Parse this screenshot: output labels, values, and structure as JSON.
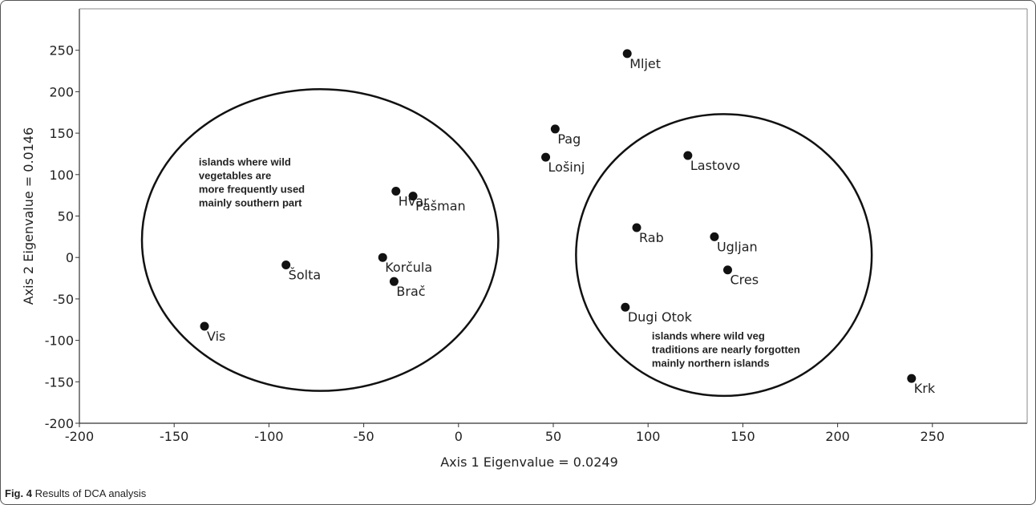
{
  "caption": {
    "label": "Fig. 4",
    "text": "Results of DCA analysis"
  },
  "chart_data": {
    "type": "scatter",
    "xlabel": "Axis 1 Eigenvalue =  0.0249",
    "ylabel": "Axis 2 Eigenvalue = 0.0146",
    "xlim": [
      -200,
      300
    ],
    "ylim": [
      -200,
      300
    ],
    "xticks": [
      -200,
      -150,
      -100,
      -50,
      0,
      50,
      100,
      150,
      200,
      250
    ],
    "yticks": [
      -200,
      -150,
      -100,
      -50,
      0,
      50,
      100,
      150,
      200,
      250
    ],
    "grid": false,
    "points": [
      {
        "label": "Mljet",
        "x": 89,
        "y": 246
      },
      {
        "label": "Pag",
        "x": 51,
        "y": 155
      },
      {
        "label": "Lošinj",
        "x": 46,
        "y": 121
      },
      {
        "label": "Lastovo",
        "x": 121,
        "y": 123
      },
      {
        "label": "Hvar",
        "x": -33,
        "y": 80
      },
      {
        "label": "Pašman",
        "x": -24,
        "y": 74
      },
      {
        "label": "Rab",
        "x": 94,
        "y": 36
      },
      {
        "label": "Ugljan",
        "x": 135,
        "y": 25
      },
      {
        "label": "Korčula",
        "x": -40,
        "y": 0
      },
      {
        "label": "Šolta",
        "x": -91,
        "y": -9
      },
      {
        "label": "Cres",
        "x": 142,
        "y": -15
      },
      {
        "label": "Brač",
        "x": -34,
        "y": -29
      },
      {
        "label": "Dugi Otok",
        "x": 88,
        "y": -60
      },
      {
        "label": "Vis",
        "x": -134,
        "y": -83
      },
      {
        "label": "Krk",
        "x": 239,
        "y": -146
      }
    ],
    "annotations": [
      {
        "lines": [
          "islands where wild",
          "vegetables are",
          "more frequently used",
          "mainly southern part"
        ]
      },
      {
        "lines": [
          "islands where wild veg",
          "traditions are nearly forgotten",
          "mainly northern islands"
        ]
      }
    ]
  }
}
